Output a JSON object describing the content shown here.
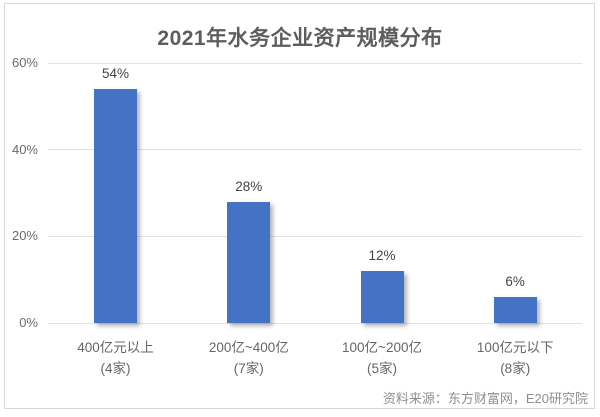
{
  "title": "2021年水务企业资产规模分布",
  "source_note": "资料来源：东方财富网，E20研究院",
  "colors": {
    "bar": "#4472c4",
    "gridline": "#e2e2e2",
    "frame_border": "#d9d9d9",
    "title_text": "#5d5d5d",
    "axis_text": "#6b6b6b",
    "source_text": "#8f8f8f"
  },
  "chart_data": {
    "type": "bar",
    "title": "2021年水务企业资产规模分布",
    "categories": [
      {
        "range": "400亿元以上",
        "count": "(4家)"
      },
      {
        "range": "200亿~400亿",
        "count": "(7家)"
      },
      {
        "range": "100亿~200亿",
        "count": "(5家)"
      },
      {
        "range": "100亿元以下",
        "count": "(8家)"
      }
    ],
    "values": [
      54,
      28,
      12,
      6
    ],
    "data_labels": [
      "54%",
      "28%",
      "12%",
      "6%"
    ],
    "xlabel": "",
    "ylabel": "",
    "ylim": [
      0,
      60
    ],
    "y_ticks": [
      {
        "label": "60%",
        "value": 60
      },
      {
        "label": "40%",
        "value": 40
      },
      {
        "label": "20%",
        "value": 20
      },
      {
        "label": "0%",
        "value": 0
      }
    ],
    "grid": true,
    "legend": "none",
    "bar_color": "#4472c4"
  }
}
